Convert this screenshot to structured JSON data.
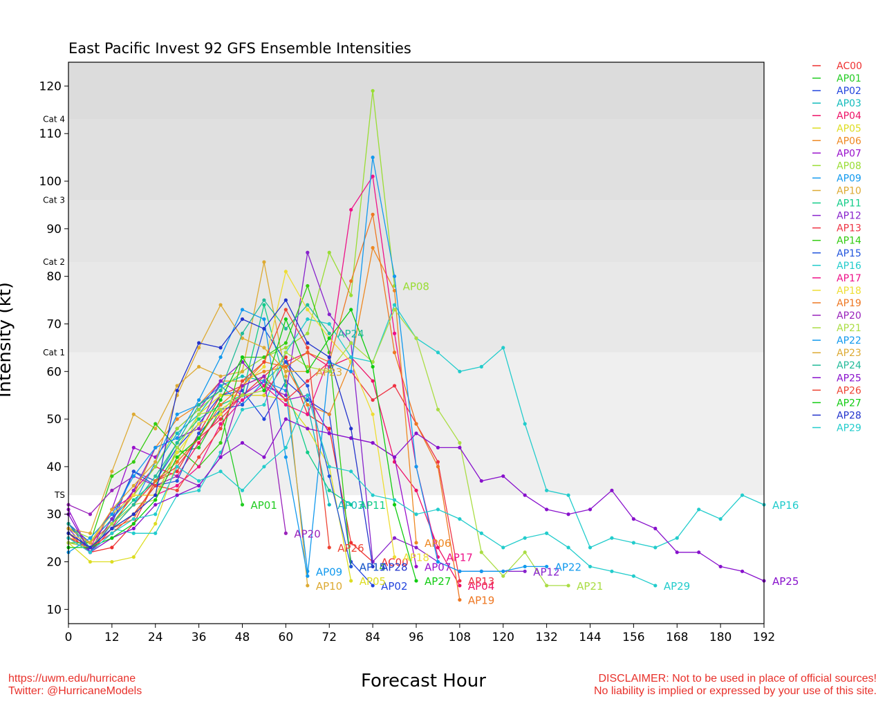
{
  "page": {
    "title": "East Pacific Invest 92 GFS Ensemble Intensities",
    "footer_left": [
      "https://uwm.edu/hurricane",
      "Twitter: @HurricaneModels"
    ],
    "footer_right": [
      "DISCLAIMER: Not to be used in place of official sources!",
      "No liability is implied or expressed by your use of this site."
    ]
  },
  "chart_data": {
    "type": "line",
    "title": "East Pacific Invest 92 GFS Ensemble Intensities",
    "xlabel": "Forecast Hour",
    "ylabel": "Intensity (kt)",
    "xlim": [
      0,
      192
    ],
    "ylim": [
      7,
      125
    ],
    "xticks": [
      0,
      12,
      24,
      36,
      48,
      60,
      72,
      84,
      96,
      108,
      120,
      132,
      144,
      156,
      168,
      180,
      192
    ],
    "yticks": [
      10,
      20,
      30,
      40,
      50,
      60,
      70,
      80,
      90,
      100,
      110,
      120
    ],
    "legend_position": "right-outside",
    "bands": [
      {
        "from": 34,
        "to": 64,
        "label": "TS",
        "color": "#efefef"
      },
      {
        "from": 64,
        "to": 83,
        "label": "Cat 1",
        "color": "#e8e8e8"
      },
      {
        "from": 83,
        "to": 96,
        "label": "Cat 2",
        "color": "#e4e4e4"
      },
      {
        "from": 96,
        "to": 113,
        "label": "Cat 3",
        "color": "#e0e0e0"
      },
      {
        "from": 113,
        "to": 125,
        "label": "Cat 4",
        "color": "#dcdcdc"
      }
    ],
    "band_labels": [
      {
        "text": "TS",
        "at": 34
      },
      {
        "text": "Cat 1",
        "at": 64
      },
      {
        "text": "Cat 2",
        "at": 83
      },
      {
        "text": "Cat 3",
        "at": 96
      },
      {
        "text": "Cat 4",
        "at": 113
      }
    ],
    "series": [
      {
        "name": "AC00",
        "color": "#ee3030",
        "x": [
          0,
          6,
          12,
          18,
          24,
          30,
          36,
          42,
          48,
          54,
          60,
          66,
          72,
          78,
          84
        ],
        "y": [
          26,
          22,
          23,
          28,
          37,
          39,
          47,
          55,
          57,
          59,
          63,
          51,
          48,
          24,
          20
        ]
      },
      {
        "name": "AP01",
        "color": "#22cc22",
        "x": [
          0,
          6,
          12,
          18,
          24,
          30,
          36,
          42,
          48
        ],
        "y": [
          25,
          23,
          27,
          30,
          36,
          43,
          44,
          52,
          32
        ]
      },
      {
        "name": "AP02",
        "color": "#2244dd",
        "x": [
          0,
          6,
          12,
          18,
          24,
          30,
          36,
          42,
          48,
          54,
          60,
          66,
          72,
          78,
          84
        ],
        "y": [
          28,
          24,
          29,
          39,
          37,
          44,
          49,
          55,
          56,
          50,
          58,
          54,
          51,
          20,
          15
        ]
      },
      {
        "name": "AP03",
        "color": "#11bbbb",
        "x": [
          0,
          6,
          12,
          18,
          24,
          30,
          36,
          42,
          48,
          54,
          60,
          66,
          72
        ],
        "y": [
          27,
          24,
          29,
          34,
          40,
          47,
          51,
          57,
          59,
          58,
          62,
          53,
          32
        ]
      },
      {
        "name": "AP04",
        "color": "#ee1166",
        "x": [
          0,
          6,
          12,
          18,
          24,
          30,
          36,
          42,
          48,
          54,
          60,
          66,
          72,
          78,
          84,
          90,
          96,
          102,
          108
        ],
        "y": [
          25,
          22,
          27,
          35,
          40,
          38,
          45,
          51,
          55,
          55,
          62,
          64,
          61,
          63,
          58,
          41,
          35,
          23,
          15
        ]
      },
      {
        "name": "AP05",
        "color": "#dddd22",
        "x": [
          0,
          6,
          12,
          18,
          24,
          30,
          36,
          42,
          48,
          54,
          60,
          66,
          72,
          78
        ],
        "y": [
          24,
          20,
          20,
          21,
          28,
          41,
          51,
          55,
          55,
          55,
          54,
          48,
          40,
          16
        ]
      },
      {
        "name": "AP06",
        "color": "#ee8822",
        "x": [
          0,
          6,
          12,
          18,
          24,
          30,
          36,
          42,
          48,
          54,
          60,
          66,
          72,
          78,
          84,
          90,
          96
        ],
        "y": [
          25,
          24,
          28,
          34,
          44,
          50,
          53,
          58,
          58,
          60,
          61,
          53,
          51,
          62,
          86,
          77,
          24
        ]
      },
      {
        "name": "AP07",
        "color": "#9911cc",
        "x": [
          0,
          6,
          12,
          18,
          24,
          30,
          36,
          42,
          48,
          54,
          60,
          66,
          72,
          78,
          84,
          90,
          96
        ],
        "y": [
          31,
          22,
          31,
          44,
          42,
          48,
          52,
          58,
          55,
          58,
          54,
          55,
          47,
          46,
          45,
          42,
          19
        ]
      },
      {
        "name": "AP08",
        "color": "#99dd33",
        "x": [
          0,
          6,
          12,
          18,
          24,
          30,
          36,
          42,
          48,
          54,
          60,
          66,
          72,
          78,
          84,
          90
        ],
        "y": [
          27,
          25,
          30,
          34,
          40,
          48,
          52,
          56,
          60,
          63,
          65,
          68,
          85,
          76,
          119,
          78
        ]
      },
      {
        "name": "AP09",
        "color": "#1199ee",
        "x": [
          0,
          6,
          12,
          18,
          24,
          30,
          36,
          42,
          48,
          54,
          60,
          66
        ],
        "y": [
          26,
          23,
          28,
          32,
          41,
          51,
          53,
          57,
          53,
          58,
          56,
          18
        ]
      },
      {
        "name": "AP10",
        "color": "#ddaa33",
        "x": [
          0,
          6,
          12,
          18,
          24,
          30,
          36,
          42,
          48,
          54,
          60,
          66
        ],
        "y": [
          27,
          26,
          39,
          51,
          48,
          57,
          61,
          59,
          60,
          83,
          59,
          15
        ]
      },
      {
        "name": "AP11",
        "color": "#11cc88",
        "x": [
          0,
          6,
          12,
          18,
          24,
          30,
          36,
          42,
          48,
          54,
          60,
          66,
          72,
          78
        ],
        "y": [
          26,
          23,
          28,
          33,
          37,
          45,
          50,
          53,
          55,
          74,
          57,
          43,
          35,
          32
        ]
      },
      {
        "name": "AP12",
        "color": "#8822cc",
        "x": [
          0,
          6,
          12,
          18,
          24,
          30,
          36,
          42,
          48,
          54,
          60,
          66,
          72,
          78,
          84,
          90,
          96,
          102,
          108,
          114,
          120,
          126
        ],
        "y": [
          27,
          22,
          29,
          35,
          44,
          46,
          48,
          58,
          62,
          57,
          55,
          85,
          72,
          66,
          20,
          25,
          23,
          20,
          18,
          18,
          18,
          18
        ]
      },
      {
        "name": "AP13",
        "color": "#ee3344",
        "x": [
          0,
          6,
          12,
          18,
          24,
          30,
          36,
          42,
          48,
          54,
          60,
          66,
          72,
          78,
          84,
          90,
          96,
          102,
          108
        ],
        "y": [
          25,
          23,
          27,
          32,
          37,
          40,
          46,
          50,
          55,
          59,
          54,
          58,
          62,
          60,
          54,
          57,
          49,
          41,
          16
        ]
      },
      {
        "name": "AP14",
        "color": "#33cc11",
        "x": [
          0,
          6,
          12,
          18,
          24,
          30,
          36,
          42,
          48,
          54,
          60,
          66,
          72,
          78
        ],
        "y": [
          24,
          24,
          38,
          41,
          49,
          44,
          40,
          45,
          63,
          63,
          66,
          78,
          64,
          19
        ]
      },
      {
        "name": "AP15",
        "color": "#2255dd",
        "x": [
          0,
          6,
          12,
          18,
          24,
          30,
          36,
          42,
          48,
          54,
          60,
          66,
          72,
          78
        ],
        "y": [
          28,
          22,
          28,
          39,
          36,
          37,
          47,
          52,
          53,
          69,
          62,
          57,
          38,
          19
        ]
      },
      {
        "name": "AP16",
        "color": "#22cccc",
        "x": [
          0,
          6,
          12,
          18,
          24,
          30,
          36,
          42,
          48,
          54,
          60,
          66,
          72,
          78,
          84,
          90,
          96,
          102,
          108,
          114,
          120,
          126,
          132,
          138,
          144,
          150,
          156,
          162,
          168,
          174,
          180,
          186,
          192
        ],
        "y": [
          26,
          23,
          27,
          26,
          26,
          34,
          35,
          43,
          52,
          53,
          64,
          71,
          70,
          63,
          62,
          74,
          67,
          64,
          60,
          61,
          65,
          49,
          35,
          34,
          23,
          25,
          24,
          23,
          25,
          31,
          29,
          34,
          32
        ]
      },
      {
        "name": "AP17",
        "color": "#ee1188",
        "x": [
          0,
          6,
          12,
          18,
          24,
          30,
          36,
          42,
          48,
          54,
          60,
          66,
          72,
          78,
          84,
          90,
          96,
          102
        ],
        "y": [
          24,
          23,
          31,
          34,
          34,
          36,
          40,
          49,
          54,
          57,
          53,
          51,
          63,
          94,
          101,
          68,
          40,
          21
        ]
      },
      {
        "name": "AP18",
        "color": "#eedd33",
        "x": [
          0,
          6,
          12,
          18,
          24,
          30,
          36,
          42,
          48,
          54,
          60,
          66,
          72,
          78,
          84,
          90
        ],
        "y": [
          26,
          24,
          30,
          34,
          34,
          43,
          49,
          51,
          57,
          61,
          81,
          73,
          67,
          62,
          51,
          21
        ]
      },
      {
        "name": "AP19",
        "color": "#ee7722",
        "x": [
          0,
          6,
          12,
          18,
          24,
          30,
          36,
          42,
          48,
          54,
          60,
          66,
          72,
          78,
          84,
          90,
          96,
          102,
          108
        ],
        "y": [
          24,
          23,
          27,
          29,
          37,
          41,
          46,
          53,
          57,
          62,
          61,
          64,
          62,
          79,
          93,
          64,
          49,
          40,
          12
        ]
      },
      {
        "name": "AP20",
        "color": "#9922bb",
        "x": [
          0,
          6,
          12,
          18,
          24,
          30,
          36,
          42,
          48,
          54,
          60
        ],
        "y": [
          32,
          30,
          35,
          38,
          36,
          38,
          36,
          42,
          57,
          59,
          26
        ]
      },
      {
        "name": "AP21",
        "color": "#aadd44",
        "x": [
          0,
          6,
          12,
          18,
          24,
          30,
          36,
          42,
          48,
          54,
          60,
          66,
          72,
          78,
          84,
          90,
          96,
          102,
          108,
          114,
          120,
          126,
          132,
          138
        ],
        "y": [
          24,
          23,
          28,
          32,
          33,
          44,
          51,
          52,
          55,
          56,
          64,
          61,
          60,
          66,
          62,
          73,
          67,
          52,
          45,
          22,
          17,
          22,
          15,
          15
        ]
      },
      {
        "name": "AP22",
        "color": "#1199ee",
        "x": [
          0,
          6,
          12,
          18,
          24,
          30,
          36,
          42,
          48,
          54,
          60,
          66,
          72,
          78,
          84,
          90,
          96,
          102,
          108,
          114,
          120,
          126,
          132
        ],
        "y": [
          22,
          25,
          30,
          38,
          44,
          46,
          54,
          63,
          73,
          71,
          42,
          17,
          62,
          60,
          105,
          80,
          40,
          20,
          18,
          18,
          18,
          19,
          19
        ]
      },
      {
        "name": "AP23",
        "color": "#ddaa33",
        "x": [
          0,
          6,
          12,
          18,
          24,
          30,
          36,
          42,
          48,
          54,
          60,
          66
        ],
        "y": [
          27,
          24,
          31,
          36,
          41,
          55,
          65,
          74,
          67,
          65,
          60,
          60
        ]
      },
      {
        "name": "AP24",
        "color": "#22bb99",
        "x": [
          0,
          6,
          12,
          18,
          24,
          30,
          36,
          42,
          48,
          54,
          60,
          66,
          72
        ],
        "y": [
          28,
          23,
          27,
          32,
          38,
          45,
          53,
          56,
          68,
          75,
          69,
          74,
          68
        ]
      },
      {
        "name": "AP25",
        "color": "#8811cc",
        "x": [
          0,
          6,
          12,
          18,
          24,
          30,
          36,
          42,
          48,
          54,
          60,
          66,
          72,
          78,
          84,
          90,
          96,
          102,
          108,
          114,
          120,
          126,
          132,
          138,
          144,
          150,
          156,
          162,
          168,
          174,
          180,
          186,
          192
        ],
        "y": [
          30,
          22,
          25,
          27,
          32,
          34,
          36,
          42,
          45,
          42,
          50,
          48,
          47,
          46,
          45,
          42,
          47,
          44,
          44,
          37,
          38,
          34,
          31,
          30,
          31,
          35,
          29,
          27,
          22,
          22,
          19,
          18,
          16
        ]
      },
      {
        "name": "AP26",
        "color": "#ee4433",
        "x": [
          0,
          6,
          12,
          18,
          24,
          30,
          36,
          42,
          48,
          54,
          60,
          66,
          72
        ],
        "y": [
          26,
          23,
          26,
          30,
          36,
          35,
          42,
          48,
          58,
          62,
          73,
          65,
          23
        ]
      },
      {
        "name": "AP27",
        "color": "#11cc11",
        "x": [
          0,
          6,
          12,
          18,
          24,
          30,
          36,
          42,
          48,
          54,
          60,
          66,
          72,
          78,
          84,
          90,
          96
        ],
        "y": [
          23,
          23,
          25,
          28,
          33,
          42,
          46,
          54,
          63,
          56,
          71,
          60,
          67,
          73,
          61,
          32,
          16
        ]
      },
      {
        "name": "AP28",
        "color": "#2233cc",
        "x": [
          0,
          6,
          12,
          18,
          24,
          30,
          36,
          42,
          48,
          54,
          60,
          66,
          72,
          78,
          84
        ],
        "y": [
          26,
          23,
          27,
          30,
          34,
          56,
          66,
          65,
          71,
          69,
          75,
          66,
          63,
          48,
          19
        ]
      },
      {
        "name": "AP29",
        "color": "#22cccc",
        "x": [
          0,
          6,
          12,
          18,
          24,
          30,
          36,
          42,
          48,
          54,
          60,
          66,
          72,
          78,
          84,
          90,
          96,
          102,
          108,
          114,
          120,
          126,
          132,
          138,
          144,
          150,
          156,
          162
        ],
        "y": [
          25,
          22,
          26,
          29,
          30,
          40,
          37,
          39,
          35,
          40,
          44,
          55,
          40,
          39,
          34,
          33,
          30,
          31,
          29,
          26,
          23,
          25,
          26,
          23,
          19,
          18,
          17,
          15
        ]
      }
    ]
  }
}
